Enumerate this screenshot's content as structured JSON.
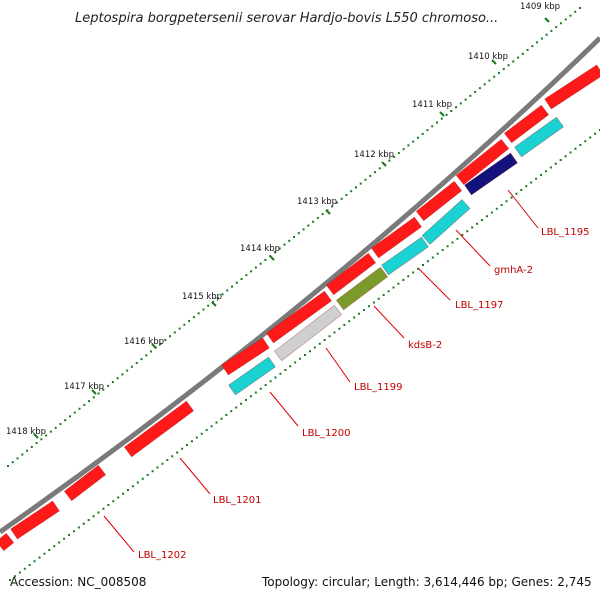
{
  "title": "Leptospira borgpetersenii serovar Hardjo-bovis L550 chromoso...",
  "footer": {
    "accession": "Accession: NC_008508",
    "summary": "Topology: circular; Length: 3,614,446 bp; Genes: 2,745"
  },
  "colors": {
    "backbone": "#7a7a7a",
    "tick": "#1a7a1a",
    "label_line": "#e00000",
    "label_text": "#c00000",
    "red": "#ff1a1a",
    "cyan": "#1ad2d2",
    "navy": "#13137e",
    "olive": "#7a9a2a",
    "gray": "#cfcfcf"
  },
  "ticks": [
    {
      "label": "1409 kbp"
    },
    {
      "label": "1410 kbp"
    },
    {
      "label": "1411 kbp"
    },
    {
      "label": "1412 kbp"
    },
    {
      "label": "1413 kbp"
    },
    {
      "label": "1414 kbp"
    },
    {
      "label": "1415 kbp"
    },
    {
      "label": "1416 kbp"
    },
    {
      "label": "1417 kbp"
    },
    {
      "label": "1418 kbp"
    }
  ],
  "labels": [
    {
      "text": "LBL_1195"
    },
    {
      "text": "gmhA-2"
    },
    {
      "text": "LBL_1197"
    },
    {
      "text": "kdsB-2"
    },
    {
      "text": "LBL_1199"
    },
    {
      "text": "LBL_1200"
    },
    {
      "text": "LBL_1201"
    },
    {
      "text": "LBL_1202"
    }
  ]
}
